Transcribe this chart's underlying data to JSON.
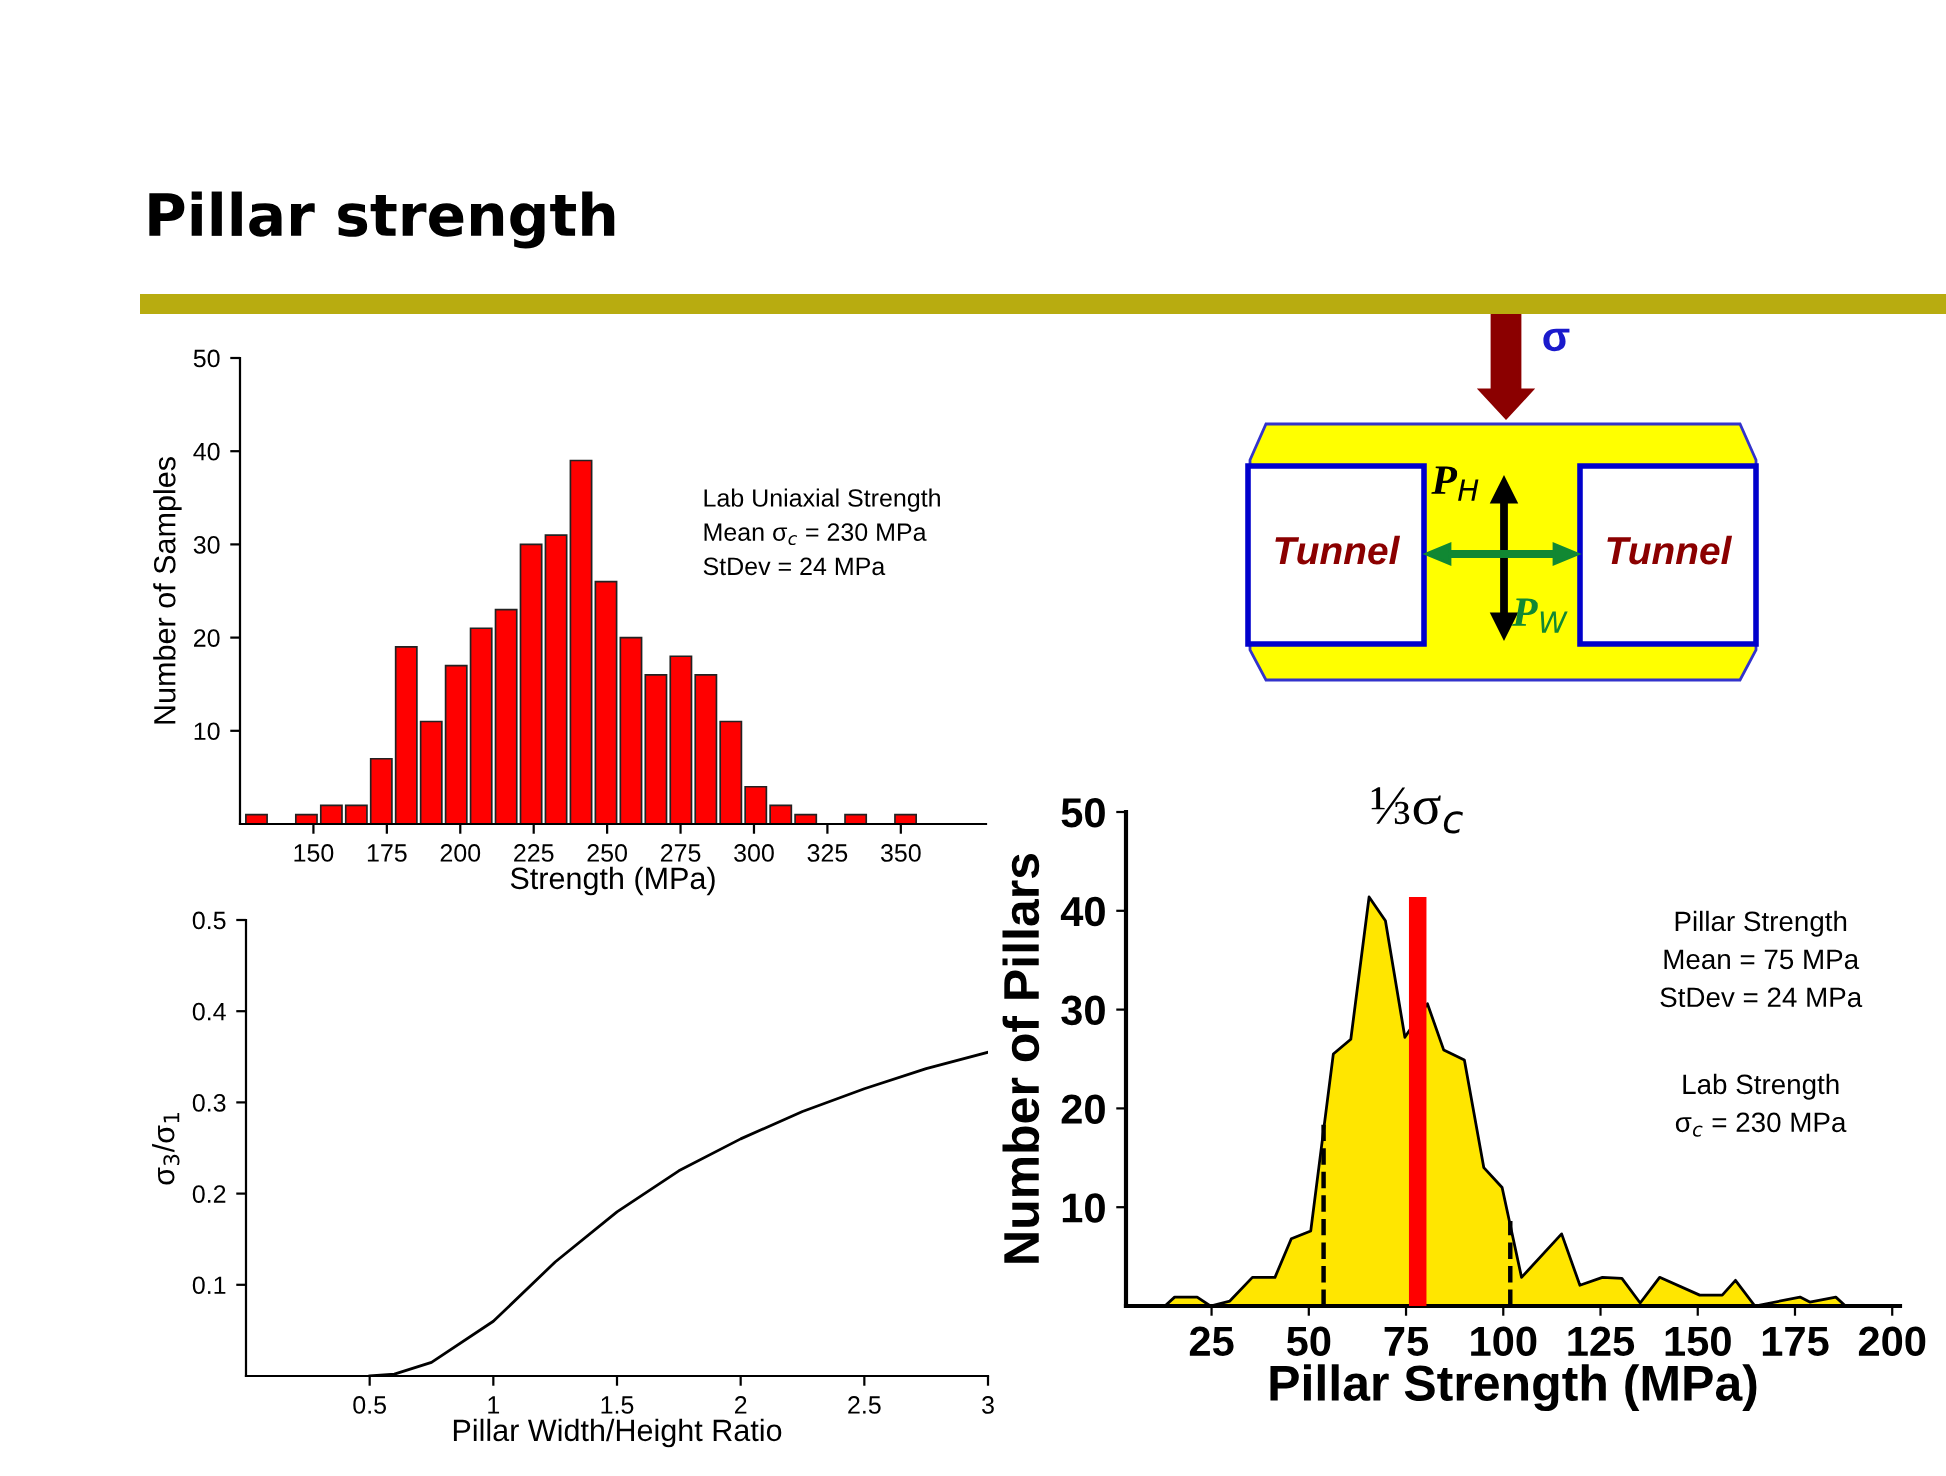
{
  "chart_data": [
    {
      "type": "histogram",
      "title": "Pillar strength",
      "xlabel": "Strength (MPa)",
      "ylabel": "Number of Samples",
      "bins": [
        127,
        135.5,
        144,
        152.5,
        161,
        169.5,
        178,
        186.5,
        195,
        203.5,
        212,
        220.5,
        229,
        237.5,
        246,
        254.5,
        263,
        271.5,
        280,
        288.5,
        297,
        305.5,
        314,
        322.5,
        331,
        339.5,
        348,
        356.5
      ],
      "values": [
        1,
        0,
        1,
        2,
        2,
        7,
        19,
        11,
        17,
        21,
        23,
        30,
        31,
        39,
        26,
        20,
        16,
        18,
        16,
        11,
        4,
        2,
        1,
        0,
        1,
        0,
        1
      ],
      "color": "#ff0000",
      "xlim": [
        125,
        379
      ],
      "ylim": [
        0,
        50
      ],
      "xticks": [
        150,
        175,
        200,
        225,
        250,
        275,
        300,
        325,
        350
      ],
      "yticks": [
        10,
        20,
        30,
        40,
        50
      ],
      "grid": false,
      "annotations": [
        "Lab Uniaxial Strength\nMean σ$_{c}$ = 230 MPa\nStDev = 24 MPa"
      ]
    },
    {
      "type": "other",
      "annotations": [
        "σ",
        "P$_{H}$",
        "P$_{W}$",
        "Tunnel",
        "Tunnel"
      ]
    },
    {
      "type": "line",
      "xlabel": "Pillar Width/Height Ratio",
      "ylabel": "σ$_{3}$/σ$_{1}$",
      "x": [
        0.5,
        0.6,
        0.75,
        1,
        1.25,
        1.5,
        1.75,
        2,
        2.25,
        2.5,
        2.75,
        3
      ],
      "values": [
        0,
        0.002,
        0.015,
        0.06,
        0.125,
        0.18,
        0.225,
        0.26,
        0.29,
        0.315,
        0.337,
        0.355
      ],
      "color": "#000000",
      "xlim": [
        0,
        3
      ],
      "ylim": [
        0,
        0.5
      ],
      "xticks": [
        0.5,
        1,
        1.5,
        2,
        2.5,
        3
      ],
      "yticks": [
        0.1,
        0.2,
        0.3,
        0.4,
        0.5
      ],
      "grid": false
    },
    {
      "type": "area",
      "xlabel": "Pillar Strength (MPa)",
      "ylabel": "Number of Pillars",
      "xlim": [
        3,
        202
      ],
      "ylim": [
        0,
        50
      ],
      "xticks": [
        25,
        50,
        75,
        100,
        125,
        150,
        175,
        200
      ],
      "yticks": [
        10,
        20,
        30,
        40,
        50
      ],
      "grid": false,
      "series": [
        {
          "type": "area",
          "color": "#ffe600",
          "x": [
            13,
            15.5,
            21.3,
            24.7,
            29.7,
            35.5,
            41.3,
            45.5,
            50.5,
            56.3,
            60.8,
            65.5,
            69.7,
            74.7,
            80.5,
            84.7,
            90,
            95,
            99.7,
            104.7,
            115,
            119.7,
            125.5,
            130.5,
            135.2,
            140.2,
            150.5,
            156.3,
            159.7,
            164.7,
            176.3,
            178.8,
            185.5,
            188
          ],
          "values": [
            0,
            0.9,
            0.9,
            0,
            0.5,
            2.9,
            2.9,
            6.8,
            7.6,
            25.5,
            27,
            41.4,
            39,
            27.2,
            30.6,
            25.9,
            24.9,
            14,
            12,
            2.9,
            7.3,
            2.1,
            2.9,
            2.8,
            0.3,
            2.9,
            1.1,
            1.1,
            2.6,
            0,
            0.9,
            0.4,
            0.9,
            0
          ]
        },
        {
          "type": "line",
          "color": "#000000",
          "line_style": "dashed",
          "x": [
            53.8,
            53.8
          ],
          "values": [
            0,
            18.8
          ]
        },
        {
          "type": "line",
          "color": "#000000",
          "line_style": "dashed",
          "x": [
            101.8,
            101.8
          ],
          "values": [
            0,
            8.6
          ]
        },
        {
          "type": "bar",
          "color": "#ff0000",
          "x": [
            78
          ],
          "values": [
            41.4
          ]
        }
      ],
      "annotations": [
        {
          "text": "⅓σ$_{c}$",
          "x": 78,
          "y": 41.4
        },
        "Pillar Strength\nMean = 75 MPa\nStDev = 24 MPa",
        "Lab Strength\nσ$_{c}$ = 230 MPa"
      ]
    }
  ]
}
